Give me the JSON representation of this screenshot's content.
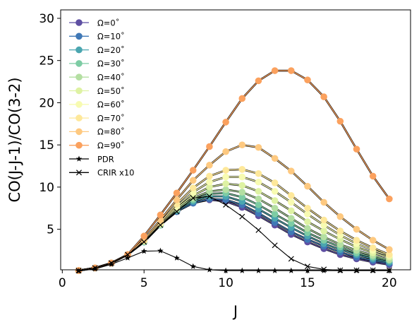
{
  "chart_data": {
    "type": "line",
    "title": "",
    "xlabel": "J",
    "ylabel": "CO(J-J-1)/CO(3-2)",
    "xlim": [
      -0.1,
      21.3
    ],
    "ylim": [
      0.2,
      31
    ],
    "xticks": [
      0,
      5,
      10,
      15,
      20
    ],
    "yticks": [
      5,
      10,
      15,
      20,
      25,
      30
    ],
    "grid": false,
    "legend_position": "top-left",
    "x": [
      1,
      2,
      3,
      4,
      5,
      6,
      7,
      8,
      9,
      10,
      11,
      12,
      13,
      14,
      15,
      16,
      17,
      18,
      19,
      20
    ],
    "series": [
      {
        "name": "Ω=0˚",
        "color": "#5e4fa2",
        "marker": "circle",
        "values": [
          0.11,
          0.42,
          1.0,
          2.0,
          3.5,
          5.5,
          7.1,
          8.1,
          8.5,
          8.3,
          7.6,
          6.6,
          5.5,
          4.4,
          3.5,
          2.7,
          2.0,
          1.5,
          1.1,
          0.8
        ]
      },
      {
        "name": "Ω=10˚",
        "color": "#3f78b6",
        "marker": "circle",
        "values": [
          0.11,
          0.42,
          1.0,
          2.0,
          3.5,
          5.5,
          7.1,
          8.1,
          8.6,
          8.5,
          7.9,
          6.9,
          5.8,
          4.7,
          3.8,
          3.0,
          2.3,
          1.7,
          1.3,
          0.95
        ]
      },
      {
        "name": "Ω=20˚",
        "color": "#4ba6b0",
        "marker": "circle",
        "values": [
          0.11,
          0.42,
          1.0,
          2.0,
          3.5,
          5.5,
          7.2,
          8.3,
          8.9,
          8.9,
          8.3,
          7.4,
          6.3,
          5.2,
          4.2,
          3.3,
          2.6,
          2.0,
          1.5,
          1.1
        ]
      },
      {
        "name": "Ω=30˚",
        "color": "#7dcca4",
        "marker": "circle",
        "values": [
          0.11,
          0.42,
          1.0,
          2.0,
          3.5,
          5.5,
          7.3,
          8.5,
          9.2,
          9.3,
          8.8,
          7.9,
          6.8,
          5.7,
          4.6,
          3.7,
          2.9,
          2.2,
          1.7,
          1.3
        ]
      },
      {
        "name": "Ω=40˚",
        "color": "#b4dfa2",
        "marker": "circle",
        "values": [
          0.11,
          0.42,
          1.0,
          2.0,
          3.6,
          5.6,
          7.4,
          8.7,
          9.5,
          9.7,
          9.4,
          8.6,
          7.5,
          6.3,
          5.1,
          4.1,
          3.2,
          2.5,
          1.9,
          1.4
        ]
      },
      {
        "name": "Ω=50˚",
        "color": "#def2a3",
        "marker": "circle",
        "values": [
          0.11,
          0.42,
          1.0,
          2.0,
          3.6,
          5.6,
          7.5,
          9.0,
          10.0,
          10.4,
          10.2,
          9.5,
          8.4,
          7.2,
          5.9,
          4.8,
          3.8,
          2.9,
          2.2,
          1.7
        ]
      },
      {
        "name": "Ω=60˚",
        "color": "#f7fbb1",
        "marker": "circle",
        "values": [
          0.11,
          0.42,
          1.0,
          2.0,
          3.6,
          5.7,
          7.7,
          9.4,
          10.6,
          11.2,
          11.2,
          10.6,
          9.5,
          8.2,
          6.8,
          5.5,
          4.3,
          3.3,
          2.5,
          1.9
        ]
      },
      {
        "name": "Ω=70˚",
        "color": "#fee89a",
        "marker": "circle",
        "values": [
          0.11,
          0.42,
          1.0,
          2.0,
          3.7,
          5.8,
          8.0,
          9.9,
          11.3,
          12.0,
          12.1,
          11.6,
          10.5,
          9.0,
          7.5,
          6.1,
          4.8,
          3.7,
          2.8,
          2.0
        ]
      },
      {
        "name": "Ω=80˚",
        "color": "#fec980",
        "marker": "circle",
        "values": [
          0.11,
          0.42,
          1.0,
          2.0,
          3.8,
          6.1,
          8.5,
          10.8,
          12.6,
          14.2,
          15.0,
          14.7,
          13.4,
          11.9,
          10.1,
          8.2,
          6.5,
          5.0,
          3.7,
          2.6
        ]
      },
      {
        "name": "Ω=90˚",
        "color": "#fba15e",
        "marker": "circle",
        "values": [
          0.11,
          0.42,
          1.0,
          2.0,
          4.2,
          6.7,
          9.3,
          12.0,
          14.8,
          17.7,
          20.5,
          22.6,
          23.8,
          23.8,
          22.7,
          20.7,
          17.8,
          14.5,
          11.3,
          8.6
        ]
      },
      {
        "name": "PDR",
        "color": "#000000",
        "marker": "star",
        "values": [
          0.05,
          0.3,
          0.85,
          1.6,
          2.4,
          2.45,
          1.6,
          0.6,
          0.2,
          0.1,
          0.1,
          0.1,
          0.1,
          0.1,
          0.1,
          0.1,
          0.1,
          0.1,
          0.1,
          0.1
        ]
      },
      {
        "name": "CRIR x10",
        "color": "#000000",
        "marker": "x",
        "values": [
          0.11,
          0.42,
          1.0,
          2.0,
          3.5,
          5.5,
          7.1,
          8.7,
          8.9,
          7.9,
          6.5,
          4.9,
          3.1,
          1.5,
          0.6,
          0.25,
          0.15,
          0.15,
          0.15,
          0.15
        ]
      }
    ]
  }
}
